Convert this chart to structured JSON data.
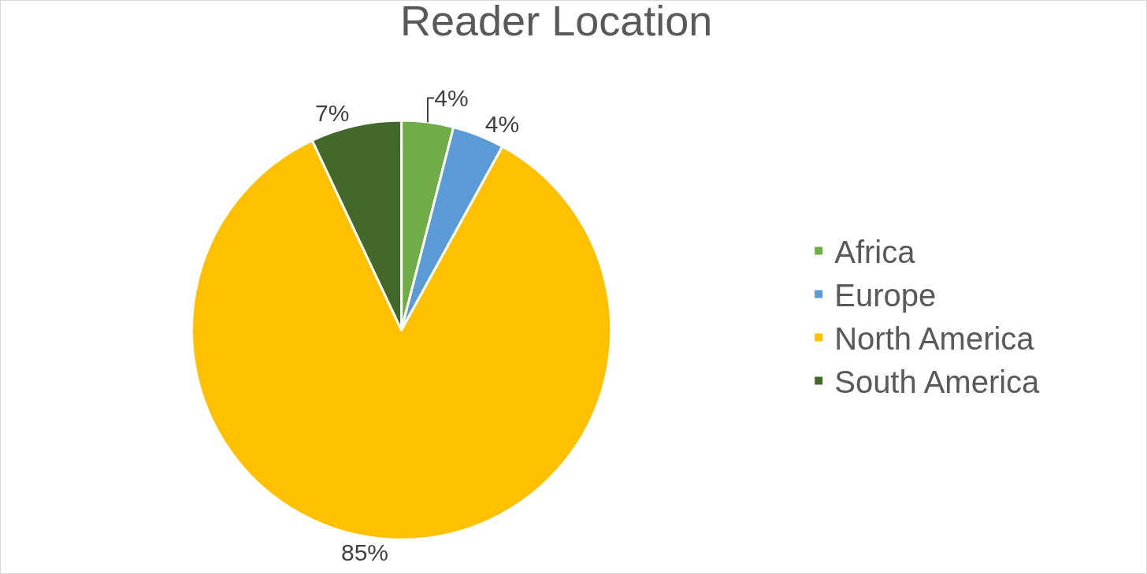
{
  "chart_data": {
    "type": "pie",
    "title": "Reader Location",
    "categories": [
      "Africa",
      "Europe",
      "North America",
      "South America"
    ],
    "values": [
      4,
      4,
      85,
      7
    ],
    "colors": [
      "#70ad47",
      "#5b9bd5",
      "#ffc000",
      "#43682b"
    ],
    "value_labels": [
      "4%",
      "4%",
      "85%",
      "7%"
    ],
    "legend": "right"
  }
}
